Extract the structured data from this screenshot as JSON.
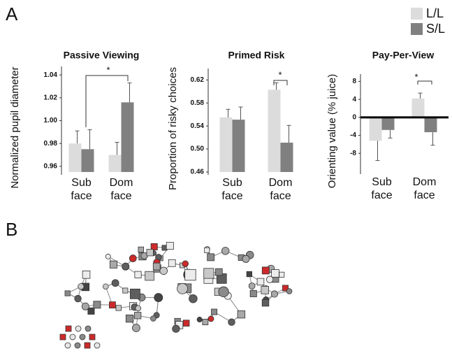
{
  "panel_labels": [
    "A",
    "B"
  ],
  "chart_data": [
    {
      "type": "bar",
      "title": "Passive Viewing",
      "y_label": "Normalized pupil diameter",
      "categories": [
        "Sub face",
        "Dom face"
      ],
      "series": [
        {
          "name": "L/L",
          "color": "#dcdcdc",
          "values": [
            0.98,
            0.97
          ],
          "errors": [
            0.011,
            0.011
          ]
        },
        {
          "name": "S/L",
          "color": "#808080",
          "values": [
            0.975,
            1.016
          ],
          "errors": [
            0.017,
            0.017
          ]
        }
      ],
      "ylim": [
        0.955,
        1.045
      ],
      "yticks": [
        0.96,
        0.98,
        {
          "value": 1,
          "label": "1.00"
        },
        1.02,
        1.04
      ],
      "annotations": [
        "*"
      ]
    },
    {
      "type": "bar",
      "title": "Primed Risk",
      "y_label": "Proportion of risky choices",
      "categories": [
        "Sub face",
        "Dom face"
      ],
      "series": [
        {
          "color": "#dcdcdc",
          "values": [
            0.555,
            0.603
          ],
          "errors": [
            0.014,
            0.012
          ]
        },
        {
          "color": "#808080",
          "values": [
            0.551,
            0.511
          ],
          "errors": [
            0.022,
            0.03
          ]
        }
      ],
      "ylim": [
        0.46,
        0.635
      ],
      "yticks": [
        0.46,
        {
          "value": 0.5,
          "label": "0.50"
        },
        0.54,
        0.58,
        0.62
      ],
      "annotations": [
        "*"
      ]
    },
    {
      "type": "bar",
      "title": "Pay-Per-View",
      "y_label": "Orienting value (% juice)",
      "categories": [
        "Sub face",
        "Dom face"
      ],
      "series": [
        {
          "color": "#dcdcdc",
          "values": [
            -5.2,
            4.2
          ],
          "errors": [
            4.4,
            1.2
          ]
        },
        {
          "color": "#808080",
          "values": [
            -2.8,
            -3.3
          ],
          "errors": [
            1.8,
            2.9
          ]
        }
      ],
      "ylim": [
        -12,
        9
      ],
      "yticks": [
        -8,
        -4,
        0,
        4,
        8
      ],
      "zero_line": true,
      "annotations": [
        "*"
      ]
    }
  ]
}
